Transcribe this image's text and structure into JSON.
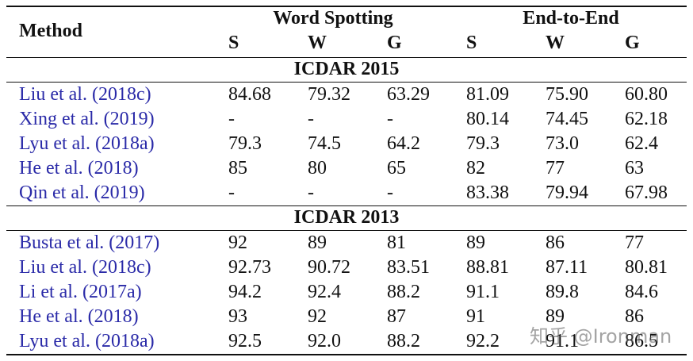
{
  "header": {
    "method": "Method",
    "groups": [
      "Word Spotting",
      "End-to-End"
    ],
    "subcolumns": [
      "S",
      "W",
      "G",
      "S",
      "W",
      "G"
    ]
  },
  "sections": [
    {
      "title": "ICDAR 2015",
      "rows": [
        [
          "Liu et al. (2018c)",
          "84.68",
          "79.32",
          "63.29",
          "81.09",
          "75.90",
          "60.80"
        ],
        [
          "Xing et al. (2019)",
          "-",
          "-",
          "-",
          "80.14",
          "74.45",
          "62.18"
        ],
        [
          "Lyu et al. (2018a)",
          "79.3",
          "74.5",
          "64.2",
          "79.3",
          "73.0",
          "62.4"
        ],
        [
          "He et al. (2018)",
          "85",
          "80",
          "65",
          "82",
          "77",
          "63"
        ],
        [
          "Qin et al. (2019)",
          "-",
          "-",
          "-",
          "83.38",
          "79.94",
          "67.98"
        ]
      ]
    },
    {
      "title": "ICDAR 2013",
      "rows": [
        [
          "Busta et al. (2017)",
          "92",
          "89",
          "81",
          "89",
          "86",
          "77"
        ],
        [
          "Liu et al. (2018c)",
          "92.73",
          "90.72",
          "83.51",
          "88.81",
          "87.11",
          "80.81"
        ],
        [
          "Li et al. (2017a)",
          "94.2",
          "92.4",
          "88.2",
          "91.1",
          "89.8",
          "84.6"
        ],
        [
          "He et al. (2018)",
          "93",
          "92",
          "87",
          "91",
          "89",
          "86"
        ],
        [
          "Lyu et al. (2018a)",
          "92.5",
          "92.0",
          "88.2",
          "92.2",
          "91.1",
          "86.5"
        ]
      ]
    }
  ],
  "watermark": "知乎 @Ironman"
}
